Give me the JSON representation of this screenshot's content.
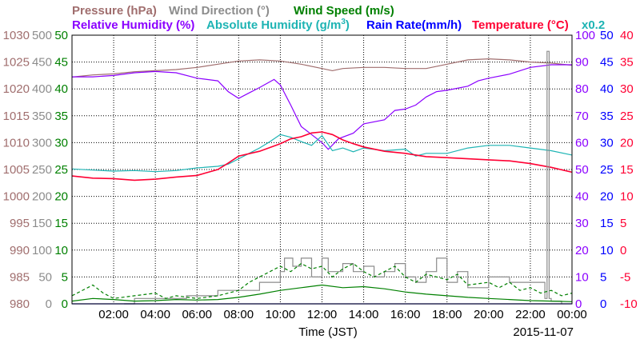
{
  "chart_data": {
    "type": "line",
    "date": "2015-11-07",
    "xlabel": "Time (JST)",
    "x_ticks": [
      "02:00",
      "04:00",
      "06:00",
      "08:00",
      "10:00",
      "12:00",
      "14:00",
      "16:00",
      "18:00",
      "20:00",
      "22:00",
      "00:00"
    ],
    "x_hours_range": [
      0,
      24
    ],
    "legend": {
      "pressure": "Pressure (hPa)",
      "wind_direction": "Wind Direction (°)",
      "wind_speed": "Wind Speed (m/s)",
      "relative_humidity": "Relative Humidity (%)",
      "absolute_humidity_prefix": "Absolute Humidity (g/m",
      "absolute_humidity_exp": "3",
      "absolute_humidity_suffix": ")",
      "rain_rate": "Rain Rate(mm/h)",
      "temperature": "Temperature (°C)",
      "rain_scale": "x0.2"
    },
    "colors": {
      "pressure": "#a06e6e",
      "wind_direction": "#8c8c8c",
      "wind_speed": "#008000",
      "relative_humidity": "#8b00ff",
      "absolute_humidity": "#1eb4b4",
      "rain_rate": "#0000ff",
      "temperature": "#ff0033"
    },
    "axes": {
      "pressure": {
        "ticks": [
          "980",
          "985",
          "990",
          "995",
          "1000",
          "1005",
          "1010",
          "1015",
          "1020",
          "1025",
          "1030"
        ],
        "range": [
          980,
          1030
        ]
      },
      "wind_direction": {
        "ticks": [
          "0",
          "50",
          "100",
          "150",
          "200",
          "250",
          "300",
          "350",
          "400",
          "450",
          "500"
        ],
        "range": [
          0,
          500
        ]
      },
      "wind_speed": {
        "ticks": [
          "0",
          "5",
          "10",
          "15",
          "20",
          "25",
          "30",
          "35",
          "40",
          "45",
          "50"
        ],
        "range": [
          0,
          50
        ]
      },
      "relative_humidity": {
        "ticks": [
          "0",
          "10",
          "20",
          "30",
          "40",
          "50",
          "60",
          "70",
          "80",
          "90",
          "100"
        ],
        "range": [
          0,
          100
        ]
      },
      "absolute_humidity": {
        "ticks": [
          "0",
          "5",
          "10",
          "15",
          "20",
          "25",
          "30",
          "35",
          "40",
          "45",
          "50"
        ],
        "range": [
          0,
          50
        ]
      },
      "temperature": {
        "ticks": [
          "-10",
          "-5",
          "0",
          "5",
          "10",
          "15",
          "20",
          "25",
          "30",
          "35",
          "40"
        ],
        "range": [
          -10,
          40
        ]
      }
    },
    "series": [
      {
        "name": "Pressure (hPa)",
        "key": "pressure",
        "axis": "pressure",
        "points": [
          [
            0,
            1022.2
          ],
          [
            1,
            1022.6
          ],
          [
            2,
            1022.8
          ],
          [
            3,
            1023.2
          ],
          [
            4,
            1023.4
          ],
          [
            5,
            1023.6
          ],
          [
            6,
            1024.0
          ],
          [
            7,
            1024.6
          ],
          [
            8,
            1025.2
          ],
          [
            9,
            1025.4
          ],
          [
            10,
            1025.2
          ],
          [
            11,
            1024.6
          ],
          [
            12,
            1023.8
          ],
          [
            12.5,
            1023.4
          ],
          [
            13,
            1023.8
          ],
          [
            14,
            1024.0
          ],
          [
            15,
            1024.0
          ],
          [
            16,
            1023.8
          ],
          [
            17,
            1023.8
          ],
          [
            18,
            1024.6
          ],
          [
            19,
            1025.4
          ],
          [
            20,
            1025.6
          ],
          [
            21,
            1025.4
          ],
          [
            22,
            1025.0
          ],
          [
            23,
            1024.8
          ],
          [
            24,
            1024.4
          ]
        ]
      },
      {
        "name": "Relative Humidity (%)",
        "key": "relative_humidity",
        "axis": "relative_humidity",
        "points": [
          [
            0,
            84.5
          ],
          [
            1,
            84.5
          ],
          [
            2,
            85.0
          ],
          [
            3,
            86.0
          ],
          [
            4,
            86.5
          ],
          [
            5,
            86.0
          ],
          [
            6,
            84.0
          ],
          [
            7,
            83.0
          ],
          [
            7.5,
            79.0
          ],
          [
            8,
            76.5
          ],
          [
            8.5,
            78.5
          ],
          [
            9,
            80.5
          ],
          [
            9.7,
            83.5
          ],
          [
            10,
            81.5
          ],
          [
            10.5,
            74.0
          ],
          [
            11,
            66.0
          ],
          [
            11.5,
            63.0
          ],
          [
            12,
            60.0
          ],
          [
            12.3,
            57.5
          ],
          [
            12.8,
            61.5
          ],
          [
            13.5,
            63.5
          ],
          [
            14,
            67.0
          ],
          [
            15,
            68.5
          ],
          [
            15.5,
            72.0
          ],
          [
            16,
            72.5
          ],
          [
            16.5,
            74.0
          ],
          [
            17,
            77.0
          ],
          [
            17.5,
            79.0
          ],
          [
            18,
            79.5
          ],
          [
            19,
            81.0
          ],
          [
            19.5,
            83.0
          ],
          [
            20,
            84.0
          ],
          [
            21,
            85.5
          ],
          [
            22,
            88.0
          ],
          [
            23,
            89.0
          ],
          [
            24,
            89.0
          ]
        ]
      },
      {
        "name": "Absolute Humidity (g/m3)",
        "key": "absolute_humidity",
        "axis": "absolute_humidity",
        "points": [
          [
            0,
            25.1
          ],
          [
            1,
            24.9
          ],
          [
            2,
            24.7
          ],
          [
            3,
            24.8
          ],
          [
            4,
            24.6
          ],
          [
            5,
            24.8
          ],
          [
            6,
            25.3
          ],
          [
            7,
            25.6
          ],
          [
            7.5,
            26.0
          ],
          [
            8,
            27.0
          ],
          [
            8.5,
            28.0
          ],
          [
            9,
            29.0
          ],
          [
            9.5,
            30.2
          ],
          [
            10,
            31.5
          ],
          [
            10.5,
            31.0
          ],
          [
            11,
            30.2
          ],
          [
            11.5,
            29.5
          ],
          [
            12,
            31.3
          ],
          [
            12.5,
            28.5
          ],
          [
            13,
            29.0
          ],
          [
            13.5,
            28.3
          ],
          [
            14,
            29.0
          ],
          [
            15,
            28.5
          ],
          [
            16,
            28.8
          ],
          [
            16.5,
            27.5
          ],
          [
            17,
            28.0
          ],
          [
            18,
            28.0
          ],
          [
            19,
            29.0
          ],
          [
            20,
            29.5
          ],
          [
            21,
            29.5
          ],
          [
            22,
            29.0
          ],
          [
            23,
            28.5
          ],
          [
            24,
            27.7
          ]
        ]
      },
      {
        "name": "Temperature (°C)",
        "key": "temperature",
        "axis": "temperature",
        "points": [
          [
            0,
            13.8
          ],
          [
            1,
            13.4
          ],
          [
            2,
            13.3
          ],
          [
            3,
            13.0
          ],
          [
            4,
            13.2
          ],
          [
            5,
            13.6
          ],
          [
            6,
            13.9
          ],
          [
            7,
            15.0
          ],
          [
            7.5,
            16.2
          ],
          [
            8,
            17.5
          ],
          [
            9,
            18.4
          ],
          [
            10,
            19.8
          ],
          [
            10.5,
            20.7
          ],
          [
            11,
            21.1
          ],
          [
            11.5,
            21.8
          ],
          [
            12,
            22.0
          ],
          [
            12.5,
            21.5
          ],
          [
            13,
            20.5
          ],
          [
            13.5,
            19.8
          ],
          [
            14,
            19.2
          ],
          [
            15,
            18.4
          ],
          [
            16,
            18.0
          ],
          [
            17,
            17.4
          ],
          [
            18,
            17.2
          ],
          [
            19,
            17.0
          ],
          [
            20,
            16.8
          ],
          [
            21,
            16.6
          ],
          [
            22,
            16.1
          ],
          [
            23,
            15.4
          ],
          [
            24,
            14.5
          ]
        ]
      },
      {
        "name": "Wind Direction (°)",
        "key": "wind_direction",
        "axis": "wind_direction",
        "style": "step",
        "points": [
          [
            2.5,
            0
          ],
          [
            3,
            10
          ],
          [
            4,
            10
          ],
          [
            5,
            10
          ],
          [
            5.5,
            15
          ],
          [
            6,
            15
          ],
          [
            6.5,
            15
          ],
          [
            7,
            25
          ],
          [
            8,
            25
          ],
          [
            9,
            40
          ],
          [
            10,
            60
          ],
          [
            10.2,
            85
          ],
          [
            10.6,
            70
          ],
          [
            11,
            85
          ],
          [
            11.5,
            50
          ],
          [
            12,
            85
          ],
          [
            12.3,
            60
          ],
          [
            13,
            75
          ],
          [
            13.5,
            60
          ],
          [
            14,
            70
          ],
          [
            14.5,
            50
          ],
          [
            15,
            60
          ],
          [
            15.5,
            75
          ],
          [
            16,
            50
          ],
          [
            16.5,
            40
          ],
          [
            17,
            60
          ],
          [
            17.5,
            85
          ],
          [
            18,
            40
          ],
          [
            18.5,
            60
          ],
          [
            19,
            30
          ],
          [
            20,
            50
          ],
          [
            21,
            40
          ],
          [
            22,
            40
          ],
          [
            22.7,
            10
          ],
          [
            22.8,
            470
          ],
          [
            22.9,
            10
          ],
          [
            23,
            5
          ],
          [
            23.5,
            0
          ]
        ]
      },
      {
        "name": "Wind Speed (m/s) mean",
        "key": "wind_speed",
        "axis": "wind_speed",
        "points": [
          [
            0,
            0.5
          ],
          [
            1,
            1.0
          ],
          [
            2,
            0.8
          ],
          [
            3,
            0.5
          ],
          [
            4,
            0.6
          ],
          [
            5,
            0.8
          ],
          [
            6,
            0.7
          ],
          [
            7,
            0.8
          ],
          [
            8,
            1.2
          ],
          [
            9,
            1.8
          ],
          [
            10,
            2.5
          ],
          [
            11,
            3.0
          ],
          [
            12,
            3.5
          ],
          [
            13,
            3.0
          ],
          [
            14,
            3.2
          ],
          [
            15,
            2.8
          ],
          [
            16,
            2.2
          ],
          [
            17,
            1.8
          ],
          [
            18,
            1.5
          ],
          [
            19,
            1.2
          ],
          [
            20,
            1.0
          ],
          [
            21,
            0.8
          ],
          [
            22,
            0.6
          ],
          [
            23,
            0.5
          ],
          [
            24,
            0.4
          ]
        ]
      },
      {
        "name": "Wind Speed (m/s) gust",
        "key": "wind_speed",
        "axis": "wind_speed",
        "style": "dashed",
        "points": [
          [
            0,
            1.5
          ],
          [
            1,
            3.5
          ],
          [
            1.5,
            2.0
          ],
          [
            2,
            1.0
          ],
          [
            3,
            1.5
          ],
          [
            4,
            2.0
          ],
          [
            4.5,
            1.0
          ],
          [
            5,
            1.5
          ],
          [
            6,
            1.0
          ],
          [
            7,
            1.5
          ],
          [
            8,
            2.5
          ],
          [
            8.5,
            4.0
          ],
          [
            9,
            5.0
          ],
          [
            9.5,
            6.0
          ],
          [
            10,
            7.0
          ],
          [
            10.5,
            6.0
          ],
          [
            11,
            7.5
          ],
          [
            11.5,
            6.5
          ],
          [
            12,
            7.0
          ],
          [
            12.5,
            5.0
          ],
          [
            13,
            6.5
          ],
          [
            13.5,
            7.5
          ],
          [
            14,
            6.0
          ],
          [
            14.5,
            5.0
          ],
          [
            15,
            6.0
          ],
          [
            15.5,
            7.0
          ],
          [
            16,
            5.0
          ],
          [
            16.5,
            4.0
          ],
          [
            17,
            5.5
          ],
          [
            18,
            4.5
          ],
          [
            18.5,
            5.5
          ],
          [
            19,
            3.5
          ],
          [
            20,
            4.0
          ],
          [
            20.5,
            3.0
          ],
          [
            21,
            4.0
          ],
          [
            21.5,
            2.5
          ],
          [
            22,
            3.0
          ],
          [
            22.5,
            2.0
          ],
          [
            23,
            2.5
          ],
          [
            23.5,
            1.5
          ],
          [
            24,
            2.0
          ]
        ]
      },
      {
        "name": "Rain Rate(mm/h)",
        "key": "rain_rate",
        "axis": "relative_humidity",
        "points": [
          [
            0,
            0
          ],
          [
            24,
            0
          ]
        ]
      }
    ]
  }
}
